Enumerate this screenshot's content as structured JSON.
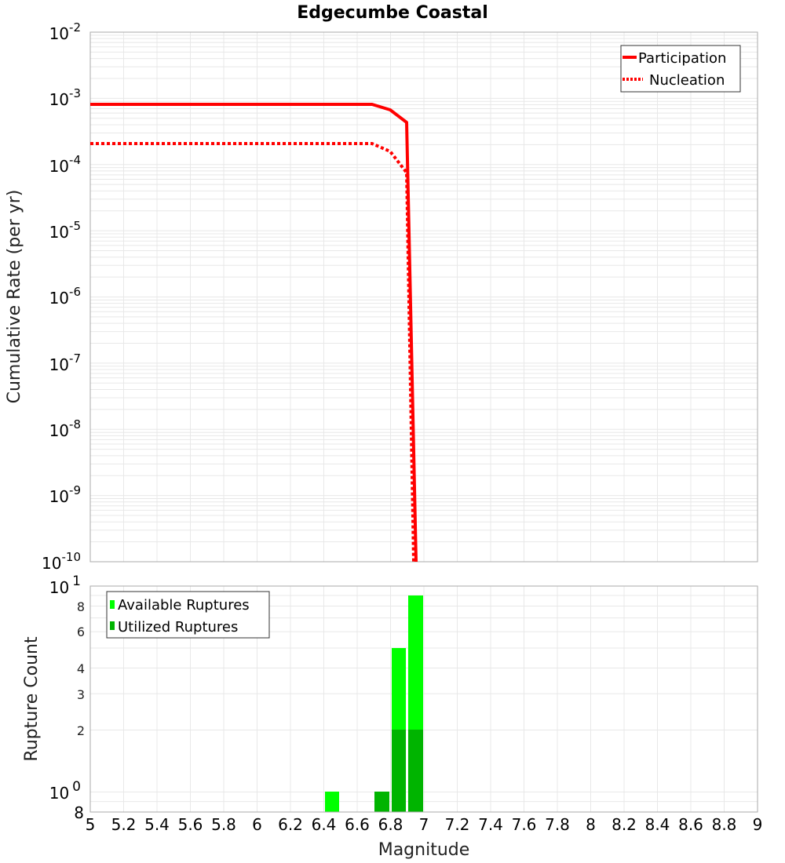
{
  "chart_data": [
    {
      "type": "line",
      "title": "Edgecumbe Coastal",
      "xlabel": "Magnitude",
      "ylabel": "Cumulative Rate (per yr)",
      "yscale": "log",
      "xlim": [
        5,
        9
      ],
      "ylim": [
        1e-10,
        0.01
      ],
      "y_ticks": [
        "10^-2",
        "10^-3",
        "10^-4",
        "10^-5",
        "10^-6",
        "10^-7",
        "10^-8",
        "10^-9",
        "10^-10"
      ],
      "grid": true,
      "legend_position": "upper right",
      "series": [
        {
          "name": "Participation",
          "style": "solid",
          "color": "#ff0000",
          "x": [
            5.0,
            5.5,
            6.0,
            6.5,
            6.7,
            6.8,
            6.9,
            6.95
          ],
          "y": [
            0.00081,
            0.00081,
            0.00081,
            0.00081,
            0.00081,
            0.00067,
            0.00042,
            1e-10
          ]
        },
        {
          "name": "Nucleation",
          "style": "dotted",
          "color": "#ff0000",
          "x": [
            5.0,
            5.5,
            6.0,
            6.5,
            6.7,
            6.8,
            6.9,
            6.95
          ],
          "y": [
            0.00021,
            0.00021,
            0.00021,
            0.00021,
            0.00021,
            0.00015,
            7e-05,
            1e-10
          ]
        }
      ]
    },
    {
      "type": "bar",
      "xlabel": "Magnitude",
      "ylabel": "Rupture Count",
      "yscale": "log",
      "xlim": [
        5,
        9
      ],
      "ylim": [
        0.8,
        10
      ],
      "y_ticks": [
        "8",
        "10^0",
        "2",
        "3",
        "4",
        "6",
        "8",
        "10^1"
      ],
      "x_ticks": [
        "5",
        "5.2",
        "5.4",
        "5.6",
        "5.8",
        "6",
        "6.2",
        "6.4",
        "6.6",
        "6.8",
        "7",
        "7.2",
        "7.4",
        "7.6",
        "7.8",
        "8",
        "8.2",
        "8.4",
        "8.6",
        "8.8",
        "9"
      ],
      "grid": true,
      "legend_position": "upper left",
      "categories": [
        6.45,
        6.75,
        6.85,
        6.95
      ],
      "series": [
        {
          "name": "Available Ruptures",
          "color": "#00ff00",
          "values": [
            1,
            1,
            5,
            9
          ]
        },
        {
          "name": "Utilized Ruptures",
          "color": "#00b400",
          "values": [
            0,
            1,
            2,
            2
          ]
        }
      ]
    }
  ],
  "top": {
    "title": "Edgecumbe Coastal",
    "ylabel": "Cumulative Rate (per yr)",
    "legend": {
      "participation": "Participation",
      "nucleation": "Nucleation"
    },
    "y_ticks": [
      {
        "base": "10",
        "exp": "-2"
      },
      {
        "base": "10",
        "exp": "-3"
      },
      {
        "base": "10",
        "exp": "-4"
      },
      {
        "base": "10",
        "exp": "-5"
      },
      {
        "base": "10",
        "exp": "-6"
      },
      {
        "base": "10",
        "exp": "-7"
      },
      {
        "base": "10",
        "exp": "-8"
      },
      {
        "base": "10",
        "exp": "-9"
      },
      {
        "base": "10",
        "exp": "-10"
      }
    ]
  },
  "bottom": {
    "ylabel": "Rupture Count",
    "xlabel": "Magnitude",
    "legend": {
      "available": "Available Ruptures",
      "utilized": "Utilized Ruptures"
    },
    "y_top": {
      "base": "10",
      "exp": "1"
    },
    "y_one": {
      "base": "10",
      "exp": "0"
    },
    "y_minor": [
      "8",
      "6",
      "4",
      "3",
      "2"
    ],
    "y_bottom": "8",
    "x_ticks": [
      "5",
      "5.2",
      "5.4",
      "5.6",
      "5.8",
      "6",
      "6.2",
      "6.4",
      "6.6",
      "6.8",
      "7",
      "7.2",
      "7.4",
      "7.6",
      "7.8",
      "8",
      "8.2",
      "8.4",
      "8.6",
      "8.8",
      "9"
    ]
  },
  "colors": {
    "line": "#ff0000",
    "available": "#00ff00",
    "utilized": "#00b400",
    "grid": "#e8e8e8",
    "frame": "#aaaaaa"
  }
}
